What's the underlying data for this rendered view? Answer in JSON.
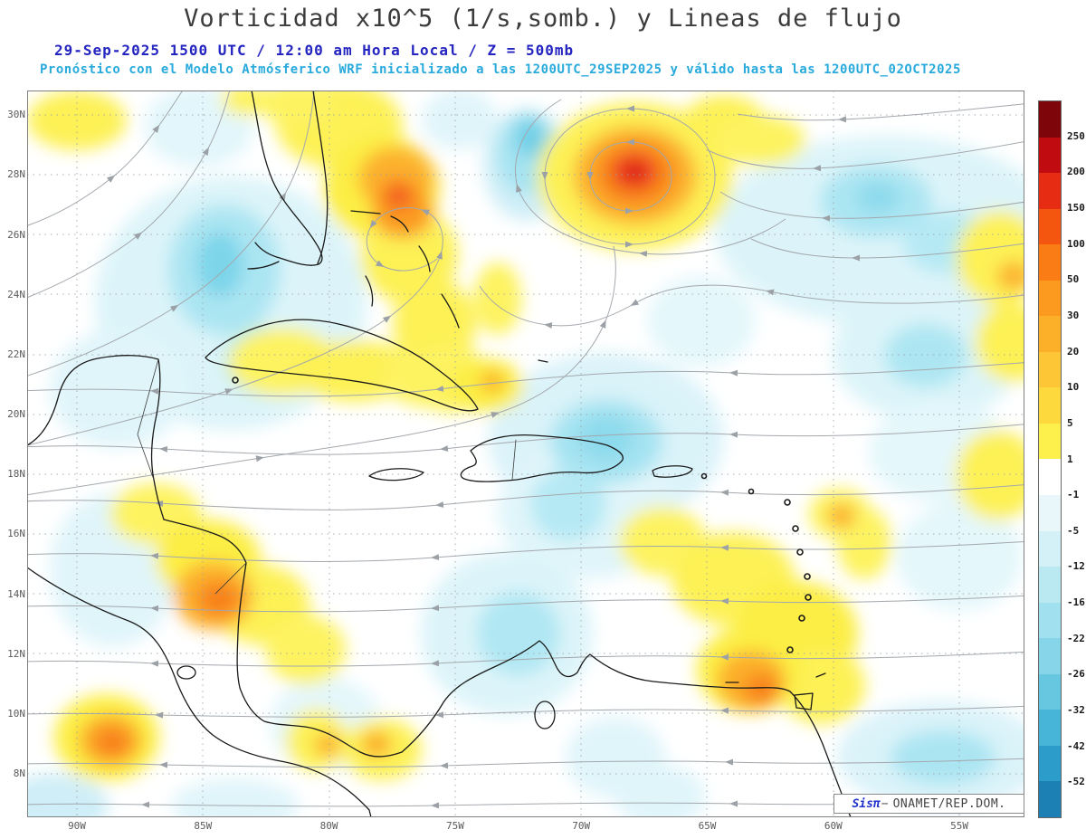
{
  "header": {
    "title": "Vorticidad x10^5 (1/s,somb.) y Lineas de flujo",
    "subtitle1": "29-Sep-2025  1500 UTC / 12:00 am Hora Local / Z = 500mb",
    "subtitle2": "Pronóstico con el Modelo Atmósferico WRF inicializado a las 1200UTC_29SEP2025 y válido hasta las  1200UTC_02OCT2025"
  },
  "chart_data": {
    "type": "heatmap",
    "title": "Vorticidad x10^5 (1/s,somb.) y Lineas de flujo",
    "variable": "Vorticidad relativa x10^5 (1/s), sombreado",
    "overlay": "Lineas de flujo (streamlines) a 500mb",
    "level": "500mb",
    "valid": "29-Sep-2025 1500 UTC / 12:00 am Hora Local",
    "model_run": "WRF inicializado 1200UTC_29SEP2025",
    "valid_until": "1200UTC_02OCT2025",
    "region": "Caribe / Atlántico occidental",
    "x_axis": {
      "ticks": [
        "90W",
        "85W",
        "80W",
        "75W",
        "70W",
        "65W",
        "60W",
        "55W"
      ]
    },
    "y_axis": {
      "ticks": [
        "30N",
        "28N",
        "26N",
        "24N",
        "22N",
        "20N",
        "18N",
        "16N",
        "14N",
        "12N",
        "10N",
        "8N"
      ]
    },
    "colorbar": {
      "units": "x10^5 1/s",
      "tick_labels": [
        "250",
        "200",
        "150",
        "100",
        "50",
        "30",
        "20",
        "10",
        "5",
        "1",
        "-1",
        "-5",
        "-12",
        "-16",
        "-22",
        "-26",
        "-32",
        "-42",
        "-52"
      ],
      "colors_top_to_bottom": [
        "#7e060b",
        "#c00b10",
        "#e62c12",
        "#f4560f",
        "#f97c15",
        "#fb9a1f",
        "#fcb02a",
        "#fdc636",
        "#fdd93e",
        "#fdf04d",
        "#ffffff",
        "#e9f7fb",
        "#d3f1f7",
        "#bae9f2",
        "#a1e0ee",
        "#86d5e9",
        "#67c7e1",
        "#46b5d8",
        "#2c9dca",
        "#1d80b5"
      ]
    },
    "features": [
      {
        "name": "vórtice ciclónico (máximo cerrado)",
        "lon": "66W",
        "lat": "28N",
        "vorticity": "100-250"
      },
      {
        "name": "máximo Bahamas / Florida",
        "lon": "78W",
        "lat": "26.5N",
        "vorticity": "50-150"
      },
      {
        "name": "máximo Nicaragua / Honduras",
        "lon": "84W",
        "lat": "12N",
        "vorticity": "30-50"
      },
      {
        "name": "máximo Venezuela / Trinidad",
        "lon": "63W",
        "lat": "9.5N",
        "vorticity": "30-50"
      },
      {
        "name": "vorticidad negativa amplia",
        "lon": "68-60W",
        "lat": "18-22N",
        "vorticity": "-5 a -26"
      }
    ]
  },
  "credit": {
    "logo": "Sisπ",
    "separator": "−",
    "text": "ONAMET/REP.DOM."
  }
}
